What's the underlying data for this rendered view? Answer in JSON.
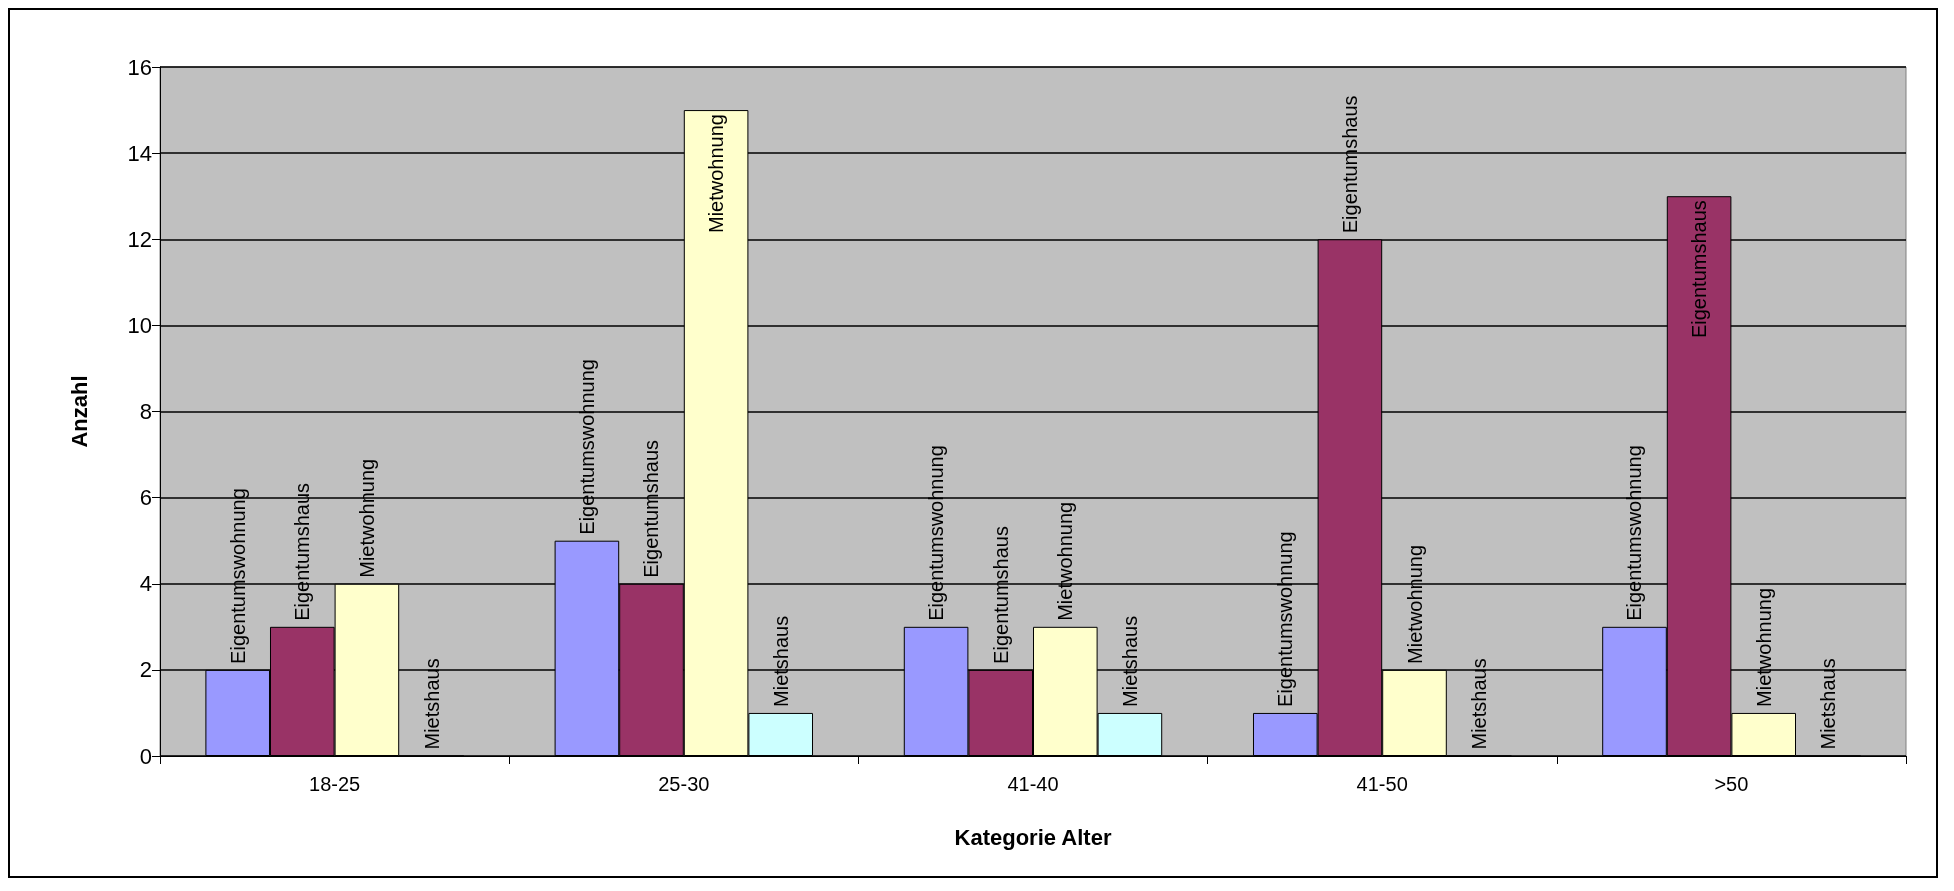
{
  "chart_data": {
    "type": "bar",
    "xlabel": "Kategorie Alter",
    "ylabel": "Anzahl",
    "categories": [
      "18-25",
      "25-30",
      "41-40",
      "41-50",
      ">50"
    ],
    "series": [
      {
        "name": "Eigentumswohnung",
        "color": "#9999ff",
        "values": [
          2,
          5,
          3,
          1,
          3
        ]
      },
      {
        "name": "Eigentumshaus",
        "color": "#993366",
        "values": [
          3,
          4,
          2,
          12,
          13
        ]
      },
      {
        "name": "Mietwohnung",
        "color": "#ffffcc",
        "values": [
          4,
          15,
          3,
          2,
          1
        ]
      },
      {
        "name": "Mietshaus",
        "color": "#ccffff",
        "values": [
          0,
          1,
          1,
          0,
          0
        ]
      }
    ],
    "ylim": [
      0,
      16
    ],
    "yticks": [
      0,
      2,
      4,
      6,
      8,
      10,
      12,
      14,
      16
    ],
    "grid": "y",
    "legend": false
  }
}
